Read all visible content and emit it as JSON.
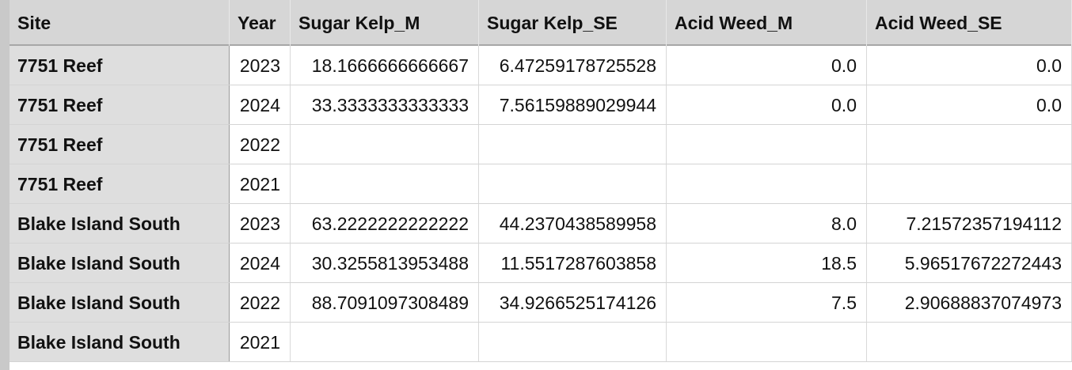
{
  "columns": [
    "Site",
    "Year",
    "Sugar Kelp_M",
    "Sugar Kelp_SE",
    "Acid Weed_M",
    "Acid Weed_SE"
  ],
  "rows": [
    {
      "site": "7751 Reef",
      "year": "2023",
      "sk_m": "18.1666666666667",
      "sk_se": "6.47259178725528",
      "aw_m": "0.0",
      "aw_se": "0.0"
    },
    {
      "site": "7751 Reef",
      "year": "2024",
      "sk_m": "33.3333333333333",
      "sk_se": "7.56159889029944",
      "aw_m": "0.0",
      "aw_se": "0.0"
    },
    {
      "site": "7751 Reef",
      "year": "2022",
      "sk_m": "",
      "sk_se": "",
      "aw_m": "",
      "aw_se": ""
    },
    {
      "site": "7751 Reef",
      "year": "2021",
      "sk_m": "",
      "sk_se": "",
      "aw_m": "",
      "aw_se": ""
    },
    {
      "site": "Blake Island South",
      "year": "2023",
      "sk_m": "63.2222222222222",
      "sk_se": "44.2370438589958",
      "aw_m": "8.0",
      "aw_se": "7.21572357194112"
    },
    {
      "site": "Blake Island South",
      "year": "2024",
      "sk_m": "30.3255813953488",
      "sk_se": "11.5517287603858",
      "aw_m": "18.5",
      "aw_se": "5.96517672272443"
    },
    {
      "site": "Blake Island South",
      "year": "2022",
      "sk_m": "88.7091097308489",
      "sk_se": "34.9266525174126",
      "aw_m": "7.5",
      "aw_se": "2.90688837074973"
    },
    {
      "site": "Blake Island South",
      "year": "2021",
      "sk_m": "",
      "sk_se": "",
      "aw_m": "",
      "aw_se": ""
    }
  ]
}
